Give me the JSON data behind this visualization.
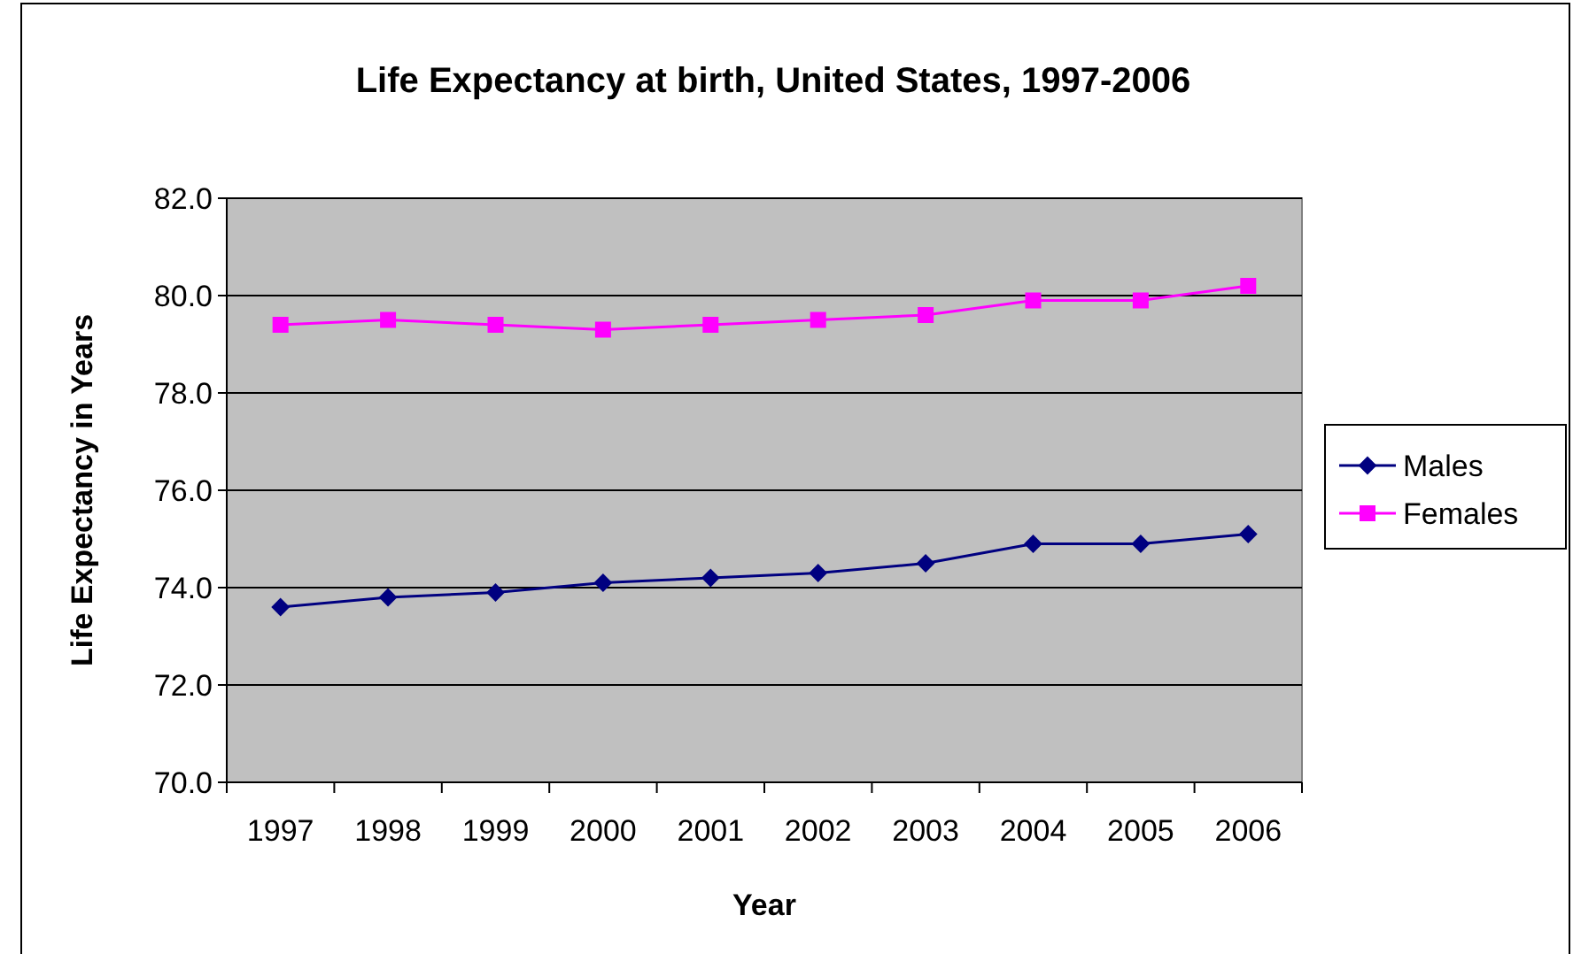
{
  "chart_data": {
    "type": "line",
    "title": "Life Expectancy at birth, United States, 1997-2006",
    "xlabel": "Year",
    "ylabel": "Life Expectancy in Years",
    "categories": [
      "1997",
      "1998",
      "1999",
      "2000",
      "2001",
      "2002",
      "2003",
      "2004",
      "2005",
      "2006"
    ],
    "series": [
      {
        "name": "Males",
        "color": "#000080",
        "marker": "diamond",
        "values": [
          73.6,
          73.8,
          73.9,
          74.1,
          74.2,
          74.3,
          74.5,
          74.9,
          74.9,
          75.1
        ]
      },
      {
        "name": "Females",
        "color": "#ff00ff",
        "marker": "square",
        "values": [
          79.4,
          79.5,
          79.4,
          79.3,
          79.4,
          79.5,
          79.6,
          79.9,
          79.9,
          80.2
        ]
      }
    ],
    "ylim": [
      70,
      82
    ],
    "yticks": [
      {
        "value": 70,
        "label": "70.0"
      },
      {
        "value": 72,
        "label": "72.0"
      },
      {
        "value": 74,
        "label": "74.0"
      },
      {
        "value": 76,
        "label": "76.0"
      },
      {
        "value": 78,
        "label": "78.0"
      },
      {
        "value": 80,
        "label": "80.0"
      },
      {
        "value": 82,
        "label": "82.0"
      }
    ],
    "grid": "y",
    "legend": "right",
    "line_style": "solid"
  }
}
